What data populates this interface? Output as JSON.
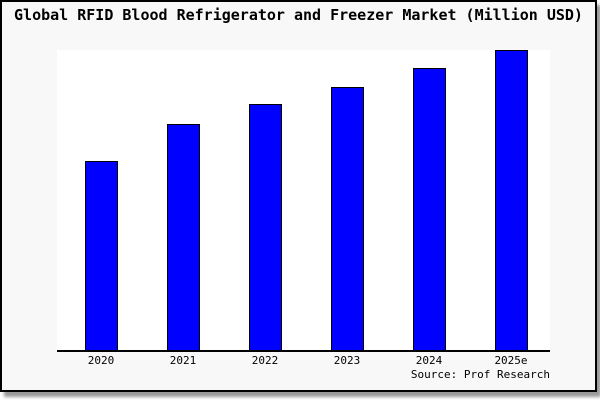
{
  "source_note": "Source: Prof Research",
  "colors": {
    "bar": "#0000ff",
    "bar_border": "#000000",
    "frame_background": "#f8f8f8",
    "plot_background": "#ffffff",
    "frame_border": "#000000",
    "text": "#000000"
  },
  "chart_data": {
    "type": "bar",
    "title": "Global RFID Blood Refrigerator and Freezer Market (Million USD)",
    "categories": [
      "2020",
      "2021",
      "2022",
      "2023",
      "2024",
      "2025e"
    ],
    "values": [
      63,
      75.3,
      82,
      87.8,
      94,
      100
    ],
    "units": "relative scale; chart shows no y-axis tick labels, values estimated as % of tallest bar",
    "xlabel": "",
    "ylabel": "",
    "ylim": [
      0,
      100
    ],
    "grid": false,
    "legend": false,
    "annotations": [
      "Source: Prof Research"
    ]
  }
}
